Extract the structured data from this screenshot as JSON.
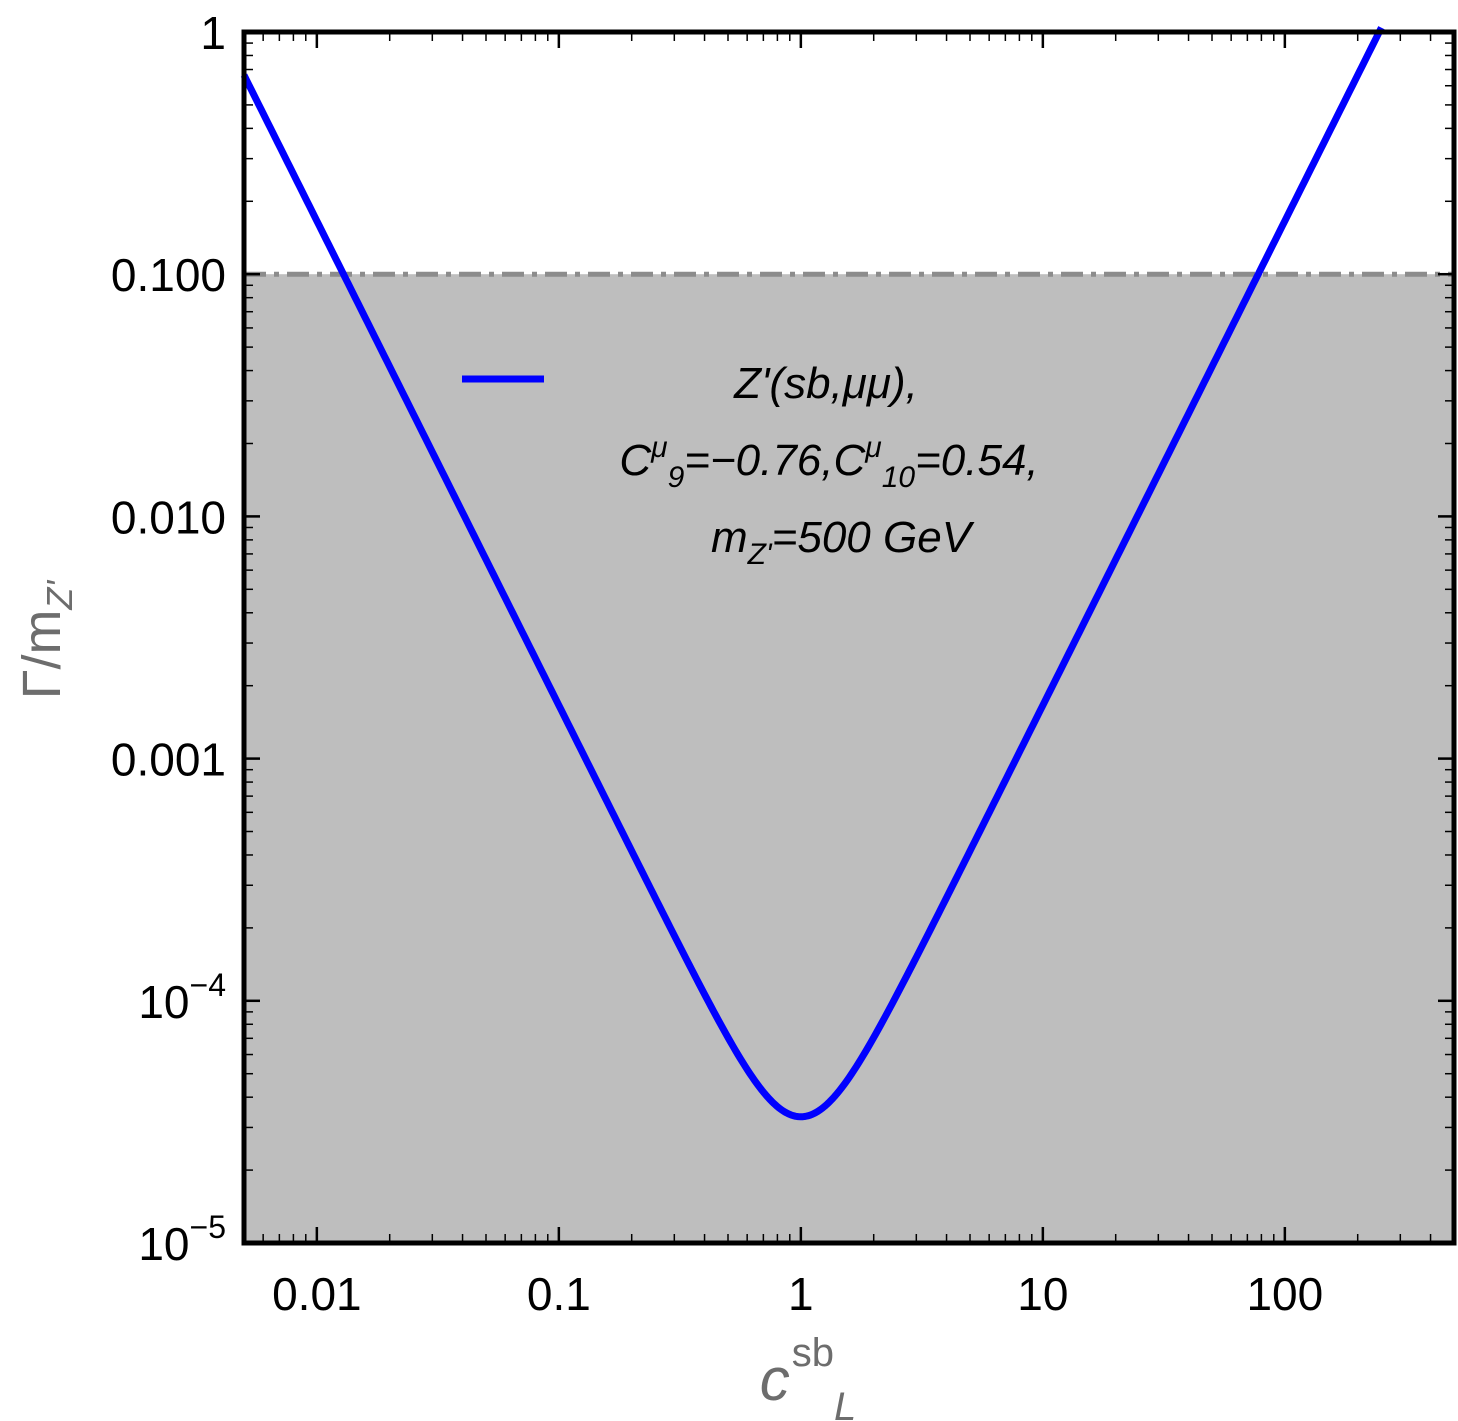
{
  "chart_data": {
    "type": "line",
    "xscale": "log",
    "yscale": "log",
    "xlim": [
      0.005,
      500
    ],
    "ylim": [
      1e-05,
      1
    ],
    "xlabel": {
      "main": "c",
      "sub": "L",
      "sup": "sb"
    },
    "ylabel": {
      "main": "Γ/m",
      "sub": "Z'"
    },
    "x_ticks": [
      {
        "value": 0.01,
        "label": "0.01"
      },
      {
        "value": 0.1,
        "label": "0.1"
      },
      {
        "value": 1,
        "label": "1"
      },
      {
        "value": 10,
        "label": "10"
      },
      {
        "value": 100,
        "label": "100"
      }
    ],
    "y_ticks": [
      {
        "value": 1,
        "label": "1",
        "exp": ""
      },
      {
        "value": 0.1,
        "label": "0.100",
        "exp": ""
      },
      {
        "value": 0.01,
        "label": "0.010",
        "exp": ""
      },
      {
        "value": 0.001,
        "label": "0.001",
        "exp": ""
      },
      {
        "value": 0.0001,
        "label": "10",
        "exp": "−4"
      },
      {
        "value": 1e-05,
        "label": "10",
        "exp": "−5"
      }
    ],
    "shaded_region": {
      "y_max": 0.1,
      "color": "#bebebe"
    },
    "threshold_line": {
      "y": 0.1,
      "style": "dash-dot",
      "color": "#8c8c8c"
    },
    "series": [
      {
        "name": "Z'(sb,μμ), C9μ=−0.76, C10μ=0.54, mZ'=500 GeV",
        "color": "#0000ff",
        "model": {
          "a": 1.66e-05,
          "b": 1.66e-05
        },
        "points": [
          {
            "x": 0.005,
            "y": 0.72
          },
          {
            "x": 0.0138,
            "y": 0.1
          },
          {
            "x": 0.1,
            "y": 0.00168
          },
          {
            "x": 1,
            "y": 3.31e-05
          },
          {
            "x": 10,
            "y": 0.00166
          },
          {
            "x": 78,
            "y": 0.1
          },
          {
            "x": 245,
            "y": 1
          }
        ]
      }
    ],
    "legend": {
      "position": "center",
      "lines": [
        {
          "parts": [
            {
              "t": "Z'(sb,μμ),"
            }
          ]
        },
        {
          "parts": [
            {
              "t": "C"
            },
            {
              "t": "μ",
              "sup": true
            },
            {
              "t": "9",
              "sub": true
            },
            {
              "t": "=−0.76,C"
            },
            {
              "t": "μ",
              "sup": true
            },
            {
              "t": "10",
              "sub": true
            },
            {
              "t": "=0.54,"
            }
          ]
        },
        {
          "parts": [
            {
              "t": "m"
            },
            {
              "t": "Z'",
              "sub": true
            },
            {
              "t": "=500 GeV"
            }
          ]
        }
      ]
    }
  }
}
